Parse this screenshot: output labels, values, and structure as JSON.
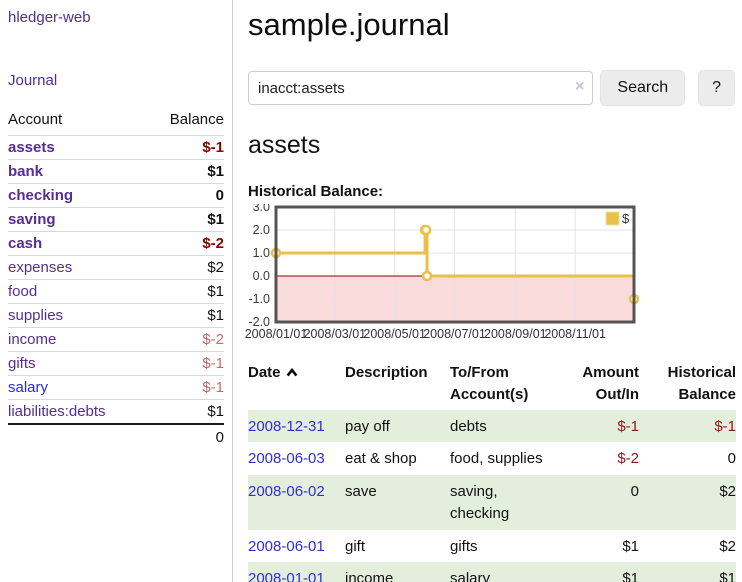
{
  "app": {
    "title": "hledger-web"
  },
  "colors": {
    "accent_purple": "#552e91",
    "link_blue": "#2b2be0",
    "date_link_blue": "#3030d0",
    "negative_strong": "#8b0000",
    "negative_soft": "#bf6b6b",
    "table_negative": "#8b1a1a",
    "row_stripe_green": "#e3efdc",
    "divider_gray": "#cccccc"
  },
  "icons": {
    "clear": "×",
    "sort": "chevron-up",
    "help": "?"
  },
  "sidebar": {
    "nav_journal": "Journal",
    "accounts_table": {
      "headers": [
        "Account",
        "Balance"
      ],
      "rows": [
        {
          "account": "assets",
          "balance": "$-1",
          "indent": 1,
          "bold": true,
          "balance_tone": "negative-strong"
        },
        {
          "account": "bank",
          "balance": "$1",
          "indent": 2,
          "bold": true,
          "balance_tone": ""
        },
        {
          "account": "checking",
          "balance": "0",
          "indent": 3,
          "bold": true,
          "balance_tone": ""
        },
        {
          "account": "saving",
          "balance": "$1",
          "indent": 3,
          "bold": true,
          "balance_tone": ""
        },
        {
          "account": "cash",
          "balance": "$-2",
          "indent": 2,
          "bold": true,
          "balance_tone": "negative-strong"
        },
        {
          "account": "expenses",
          "balance": "$2",
          "indent": 1,
          "bold": false,
          "balance_tone": ""
        },
        {
          "account": "food",
          "balance": "$1",
          "indent": 2,
          "bold": false,
          "balance_tone": ""
        },
        {
          "account": "supplies",
          "balance": "$1",
          "indent": 2,
          "bold": false,
          "balance_tone": ""
        },
        {
          "account": "income",
          "balance": "$-2",
          "indent": 1,
          "bold": false,
          "balance_tone": "negative-soft"
        },
        {
          "account": "gifts",
          "balance": "$-1",
          "indent": 2,
          "bold": false,
          "balance_tone": "negative-soft"
        },
        {
          "account": "salary",
          "balance": "$-1",
          "indent": 2,
          "bold": false,
          "balance_tone": "negative-soft",
          "link_color": "blue"
        },
        {
          "account": "liabilities:debts",
          "balance": "$1",
          "indent": 1,
          "bold": false,
          "balance_tone": ""
        }
      ],
      "total": "0"
    }
  },
  "main": {
    "title": "sample.journal",
    "search": {
      "value": "inacct:assets",
      "button_label": "Search",
      "help_label": "?"
    },
    "account_heading": "assets"
  },
  "chart_data": {
    "type": "line",
    "title": "Historical Balance:",
    "step": true,
    "series": [
      {
        "name": "$",
        "color": "#e8c04a",
        "points": [
          [
            "2008-01-01",
            1
          ],
          [
            "2008-06-01",
            2
          ],
          [
            "2008-06-02",
            2
          ],
          [
            "2008-06-03",
            0
          ],
          [
            "2008-12-31",
            -1
          ]
        ]
      }
    ],
    "x_ticks": [
      "2008/01/01",
      "2008/03/01",
      "2008/05/01",
      "2008/07/01",
      "2008/09/01",
      "2008/11/01"
    ],
    "y_ticks": [
      3.0,
      2.0,
      1.0,
      0.0,
      -1.0,
      -2.0
    ],
    "xlim": [
      "2008-01-01",
      "2008-12-31"
    ],
    "ylim": [
      -2,
      3
    ],
    "grid": true,
    "grid_color": "#e3e3e3",
    "border_color": "#545454",
    "zero_line_color": "#8b0000",
    "negative_region_color": "#fbdcdc",
    "legend_position": "top-right"
  },
  "register": {
    "headers": [
      "Date",
      "Description",
      "To/From Account(s)",
      "Amount Out/In",
      "Historical Balance"
    ],
    "rows": [
      {
        "date": "2008-12-31",
        "description": "pay off",
        "accounts": "debts",
        "amount": "$-1",
        "balance": "$-1"
      },
      {
        "date": "2008-06-03",
        "description": "eat & shop",
        "accounts": "food, supplies",
        "amount": "$-2",
        "balance": "0"
      },
      {
        "date": "2008-06-02",
        "description": "save",
        "accounts": "saving, checking",
        "amount": "0",
        "balance": "$2"
      },
      {
        "date": "2008-06-01",
        "description": "gift",
        "accounts": "gifts",
        "amount": "$1",
        "balance": "$2"
      },
      {
        "date": "2008-01-01",
        "description": "income",
        "accounts": "salary",
        "amount": "$1",
        "balance": "$1"
      }
    ]
  }
}
